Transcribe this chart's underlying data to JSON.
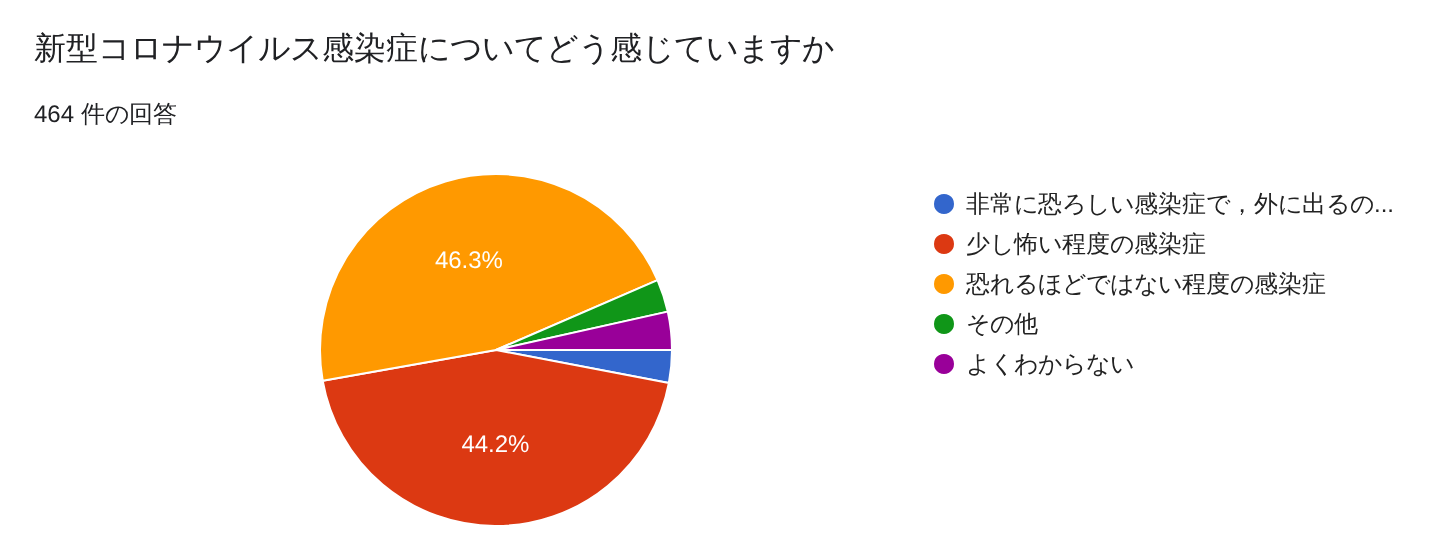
{
  "chart_data": {
    "type": "pie",
    "title": "新型コロナウイルス感染症についてどう感じていますか",
    "subtitle": "464 件の回答",
    "categories": [
      "非常に恐ろしい感染症で，外に出るの...",
      "少し怖い程度の感染症",
      "恐れるほどではない程度の感染症",
      "その他",
      "よくわからない"
    ],
    "values": [
      3.0,
      44.2,
      46.3,
      3.0,
      3.5
    ],
    "value_labels": [
      null,
      "44.2%",
      "46.3%",
      null,
      null
    ],
    "colors": [
      "#3366cc",
      "#dc3912",
      "#ff9900",
      "#109618",
      "#990099"
    ],
    "legend": "right"
  }
}
